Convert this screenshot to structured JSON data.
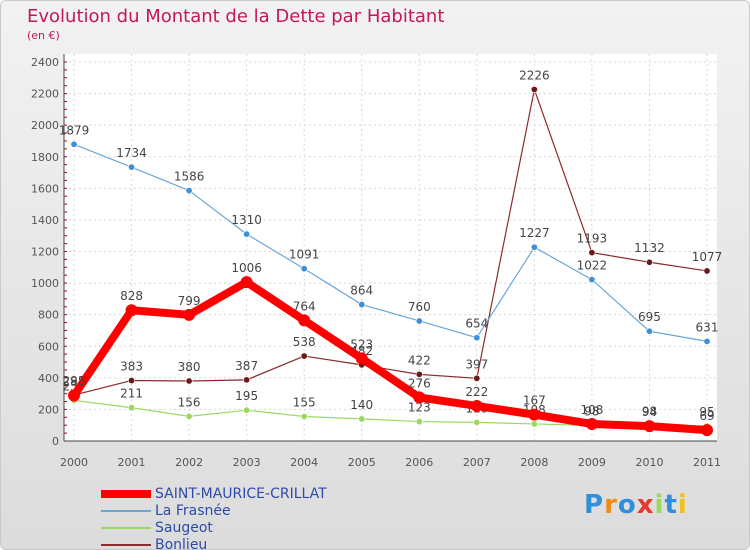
{
  "header": {
    "title": "Evolution du Montant de la Dette par Habitant",
    "subtitle": "(en €)"
  },
  "chart_data": {
    "type": "line",
    "x": [
      "2000",
      "2001",
      "2002",
      "2003",
      "2004",
      "2005",
      "2006",
      "2007",
      "2008",
      "2009",
      "2010",
      "2011"
    ],
    "ylim": [
      0,
      2400
    ],
    "yticks": [
      0,
      200,
      400,
      600,
      800,
      1000,
      1200,
      1400,
      1600,
      1800,
      2000,
      2200,
      2400
    ],
    "grid": true,
    "legend_placement": "bottom-left",
    "series": [
      {
        "name": "SAINT-MAURICE-CRILLAT",
        "color": "#ff0000",
        "values": [
          288,
          828,
          799,
          1006,
          764,
          523,
          276,
          222,
          167,
          108,
          94,
          69
        ]
      },
      {
        "name": "La Frasnée",
        "color": "#6aa6d8",
        "values": [
          1879,
          1734,
          1586,
          1310,
          1091,
          864,
          760,
          654,
          1227,
          1022,
          695,
          631
        ]
      },
      {
        "name": "Saugeot",
        "color": "#9ad85f",
        "values": [
          257,
          211,
          156,
          195,
          155,
          140,
          123,
          118,
          108,
          98,
          98,
          95
        ]
      },
      {
        "name": "Bonlieu",
        "color": "#8b2b2b",
        "values": [
          291,
          383,
          380,
          387,
          538,
          482,
          422,
          397,
          2226,
          1193,
          1132,
          1077
        ]
      }
    ]
  },
  "logo": {
    "text": "Proxiti",
    "letters": [
      "P",
      "r",
      "o",
      "x",
      "i",
      "t",
      "i"
    ],
    "colors": [
      "#2f8fd8",
      "#f08a1a",
      "#2f8fd8",
      "#e63a2a",
      "#9ad85f",
      "#2f8fd8",
      "#f0c01a"
    ]
  }
}
